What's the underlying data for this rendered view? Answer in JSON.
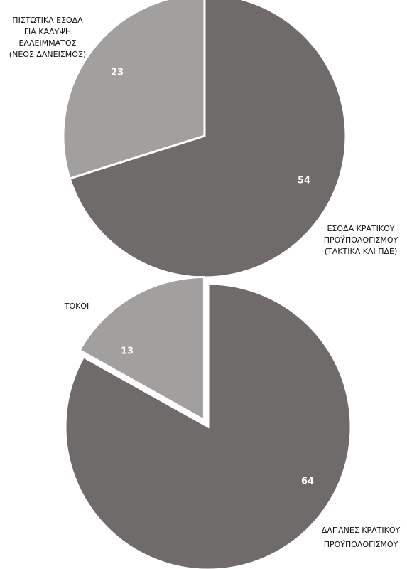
{
  "chart_data": [
    {
      "type": "pie",
      "title": "",
      "start_angle_deg": 0,
      "direction": "clockwise",
      "slices": [
        {
          "label": "ΕΣΟΔΑ ΚΡΑΤΙΚΟΥ ΠΡΟΫΠΟΛΟΓΙΣΜΟΥ (ΤΑΚΤΙΚΑ ΚΑΙ ΠΔΕ)",
          "label_lines": [
            "ΕΣΟΔΑ ΚΡΑΤΙΚΟΥ",
            "ΠΡΟΫΠΟΛΟΓΙΣΜΟΥ",
            "(ΤΑΚΤΙΚΑ ΚΑΙ ΠΔΕ)"
          ],
          "value": 54,
          "color": "#6f6b6a",
          "exploded": false
        },
        {
          "label": "ΠΙΣΤΩΤΙΚΑ ΕΣΟΔΑ ΓΙΑ ΚΑΛΥΨΗ ΕΛΛΕΙΜΜΑΤΟΣ (ΝΕΟΣ ΔΑΝΕΙΣΜΟΣ)",
          "label_lines": [
            "ΠΙΣΤΩΤΙΚΑ ΕΣΟΔΑ",
            "ΓΙΑ ΚΑΛΥΨΗ",
            "ΕΛΛΕΙΜΜΑΤΟΣ",
            "(ΝΕΟΣ ΔΑΝΕΙΣΜΟΣ)"
          ],
          "value": 23,
          "color": "#a2a09f",
          "exploded": false
        }
      ]
    },
    {
      "type": "pie",
      "title": "",
      "start_angle_deg": 0,
      "direction": "clockwise",
      "slices": [
        {
          "label": "ΔΑΠΑΝΕΣ ΚΡΑΤΙΚΟΥ ΠΡΟΫΠΟΛΟΓΙΣΜΟΥ",
          "label_lines": [
            "ΔΑΠΑΝΕΣ ΚΡΑΤΙΚΟΥ",
            "ΠΡΟΫΠΟΛΟΓΙΣΜΟΥ"
          ],
          "value": 64,
          "color": "#6f6b6a",
          "exploded": false
        },
        {
          "label": "ΤΟΚΟΙ",
          "label_lines": [
            "ΤΟΚΟΙ"
          ],
          "value": 13,
          "color": "#a2a09f",
          "exploded": true
        }
      ]
    }
  ]
}
